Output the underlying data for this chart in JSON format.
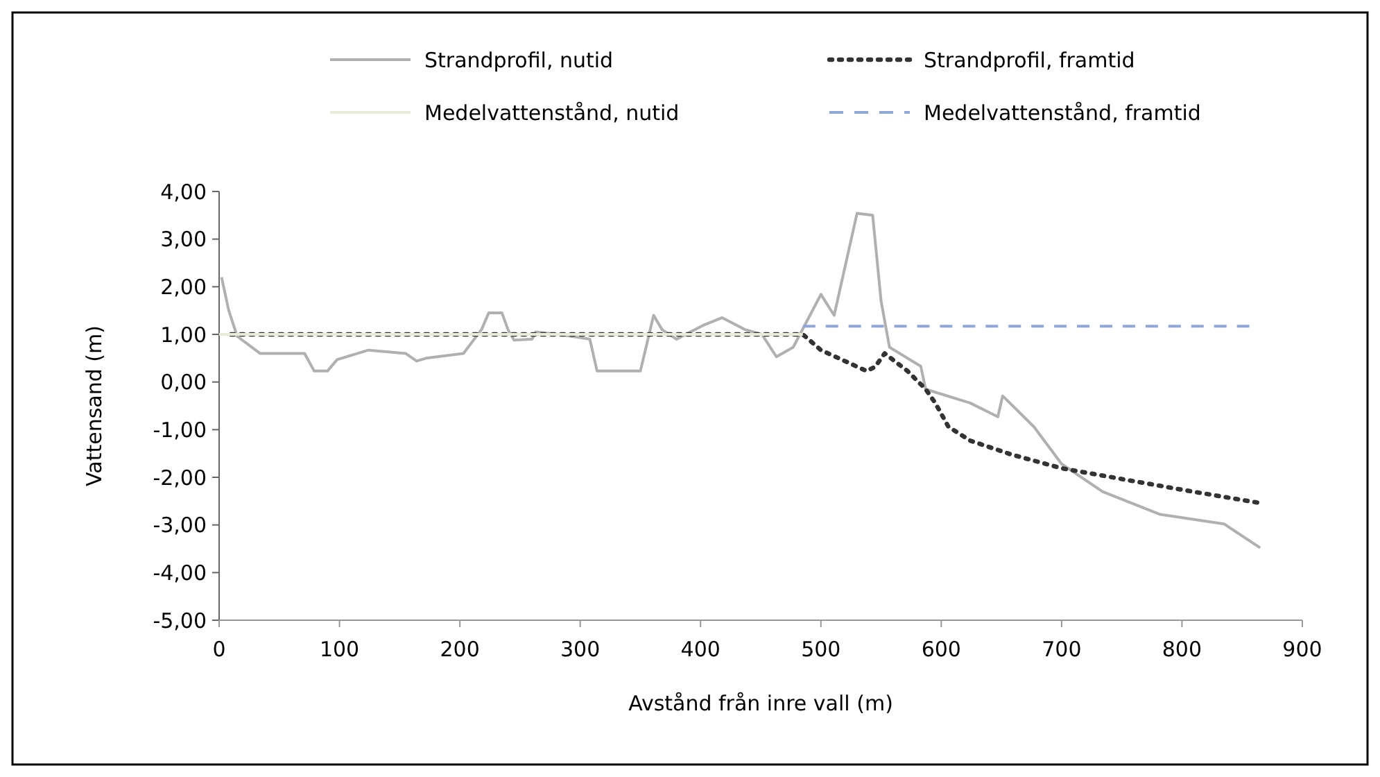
{
  "chart_data": {
    "type": "line",
    "xlabel": "Avstånd från inre vall (m)",
    "ylabel": "Vattensand (m)",
    "xlim": [
      0,
      900
    ],
    "ylim": [
      -5,
      4
    ],
    "xticks": [
      0,
      100,
      200,
      300,
      400,
      500,
      600,
      700,
      800,
      900
    ],
    "yticks": [
      {
        "value": 4,
        "label": "4,00"
      },
      {
        "value": 3,
        "label": "3,00"
      },
      {
        "value": 2,
        "label": "2,00"
      },
      {
        "value": 1,
        "label": "1,00"
      },
      {
        "value": 0,
        "label": "0,00"
      },
      {
        "value": -1,
        "label": "-1,00"
      },
      {
        "value": -2,
        "label": "-2,00"
      },
      {
        "value": -3,
        "label": "-3,00"
      },
      {
        "value": -4,
        "label": "-4,00"
      },
      {
        "value": -5,
        "label": "-5,00"
      }
    ],
    "grid": false,
    "legend": "top",
    "marker": "none",
    "series": [
      {
        "name": "Strandprofil, nutid",
        "color": "#b0b0b0",
        "line_style": "solid",
        "x": [
          2,
          8,
          15,
          34,
          71,
          79,
          90,
          98,
          124,
          155,
          164,
          172,
          203,
          218,
          224,
          235,
          240,
          245,
          260,
          263,
          282,
          308,
          314,
          350,
          361,
          368,
          380,
          403,
          418,
          437,
          451,
          463,
          477,
          500,
          511,
          530,
          543,
          550,
          557,
          583,
          587,
          624,
          647,
          651,
          677,
          700,
          734,
          782,
          835,
          865
        ],
        "values": [
          2.2,
          1.5,
          0.96,
          0.6,
          0.6,
          0.23,
          0.23,
          0.47,
          0.67,
          0.6,
          0.44,
          0.5,
          0.6,
          1.1,
          1.45,
          1.45,
          1.1,
          0.88,
          0.9,
          1.05,
          1.0,
          0.9,
          0.23,
          0.23,
          1.4,
          1.1,
          0.9,
          1.2,
          1.35,
          1.1,
          1.0,
          0.53,
          0.73,
          1.84,
          1.4,
          3.54,
          3.5,
          1.7,
          0.73,
          0.33,
          -0.15,
          -0.44,
          -0.73,
          -0.29,
          -0.94,
          -1.72,
          -2.3,
          -2.78,
          -2.98,
          -3.48
        ]
      },
      {
        "name": "Strandprofil, framtid",
        "color": "#333333",
        "line_style": "dotted",
        "x": [
          10,
          485,
          500,
          538,
          545,
          553,
          572,
          587,
          595,
          606,
          624,
          658,
          700,
          753,
          809,
          865
        ],
        "values": [
          1.0,
          1.0,
          0.67,
          0.23,
          0.32,
          0.6,
          0.23,
          -0.15,
          -0.44,
          -0.94,
          -1.23,
          -1.52,
          -1.81,
          -2.05,
          -2.3,
          -2.54
        ]
      },
      {
        "name": "Medelvattenstånd, nutid",
        "color": "#e8ecd8",
        "line_style": "solid",
        "x": [
          0,
          485
        ],
        "values": [
          1.0,
          1.0
        ]
      },
      {
        "name": "Medelvattenstånd, framtid",
        "color": "#8fa8d8",
        "line_style": "dashed",
        "x": [
          485,
          856
        ],
        "values": [
          1.17,
          1.17
        ]
      }
    ]
  }
}
